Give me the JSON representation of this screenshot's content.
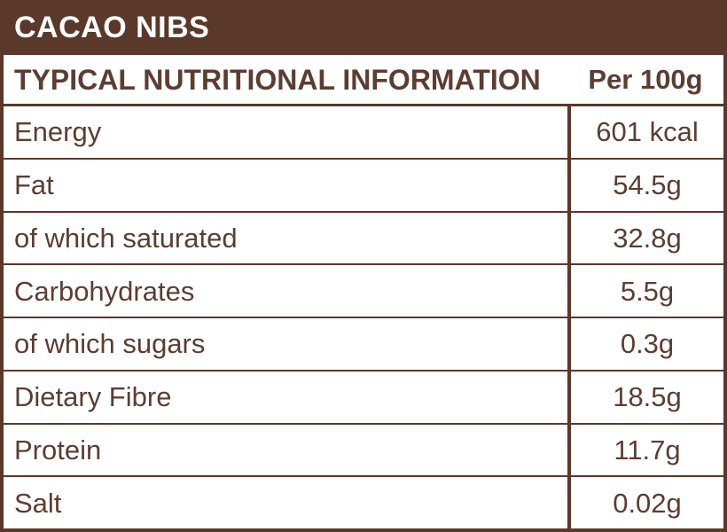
{
  "header": {
    "title": "CACAO NIBS",
    "info_label": "TYPICAL NUTRITIONAL INFORMATION",
    "per_label": "Per 100g"
  },
  "rows": [
    {
      "label": "Energy",
      "value": "601 kcal"
    },
    {
      "label": "Fat",
      "value": "54.5g"
    },
    {
      "label": "of which saturated",
      "value": "32.8g"
    },
    {
      "label": "Carbohydrates",
      "value": "5.5g"
    },
    {
      "label": "of which sugars",
      "value": "0.3g"
    },
    {
      "label": "Dietary Fibre",
      "value": "18.5g"
    },
    {
      "label": "Protein",
      "value": "11.7g"
    },
    {
      "label": "Salt",
      "value": "0.02g"
    }
  ],
  "colors": {
    "brown": "#5A392A",
    "text": "#5C3D31",
    "background": "#FFFFFF",
    "title_text": "#FFFFFF"
  }
}
